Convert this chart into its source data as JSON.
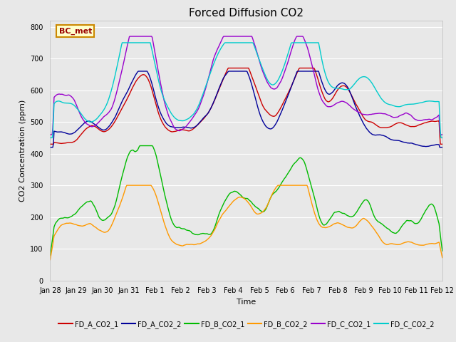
{
  "title": "Forced Diffusion CO2",
  "xlabel": "Time",
  "ylabel": "CO2 Concentration (ppm)",
  "ylim": [
    0,
    820
  ],
  "yticks": [
    0,
    100,
    200,
    300,
    400,
    500,
    600,
    700,
    800
  ],
  "background_color": "#e8e8e8",
  "plot_bg_color": "#e8e8e8",
  "annotation_text": "BC_met",
  "annotation_bg": "#ffffcc",
  "annotation_border": "#cc8800",
  "legend_entries": [
    "FD_A_CO2_1",
    "FD_A_CO2_2",
    "FD_B_CO2_1",
    "FD_B_CO2_2",
    "FD_C_CO2_1",
    "FD_C_CO2_2"
  ],
  "legend_colors": [
    "#cc0000",
    "#000099",
    "#00bb00",
    "#ff9900",
    "#9900cc",
    "#00cccc"
  ],
  "xtick_labels": [
    "Jan 28",
    "Jan 29",
    "Jan 30",
    "Jan 31",
    "Feb 1",
    "Feb 2",
    "Feb 3",
    "Feb 4",
    "Feb 5",
    "Feb 6",
    "Feb 7",
    "Feb 8",
    "Feb 9",
    "Feb 10",
    "Feb 11",
    "Feb 12"
  ],
  "grid_color": "#ffffff",
  "title_fontsize": 11,
  "axis_label_fontsize": 8,
  "tick_fontsize": 7
}
